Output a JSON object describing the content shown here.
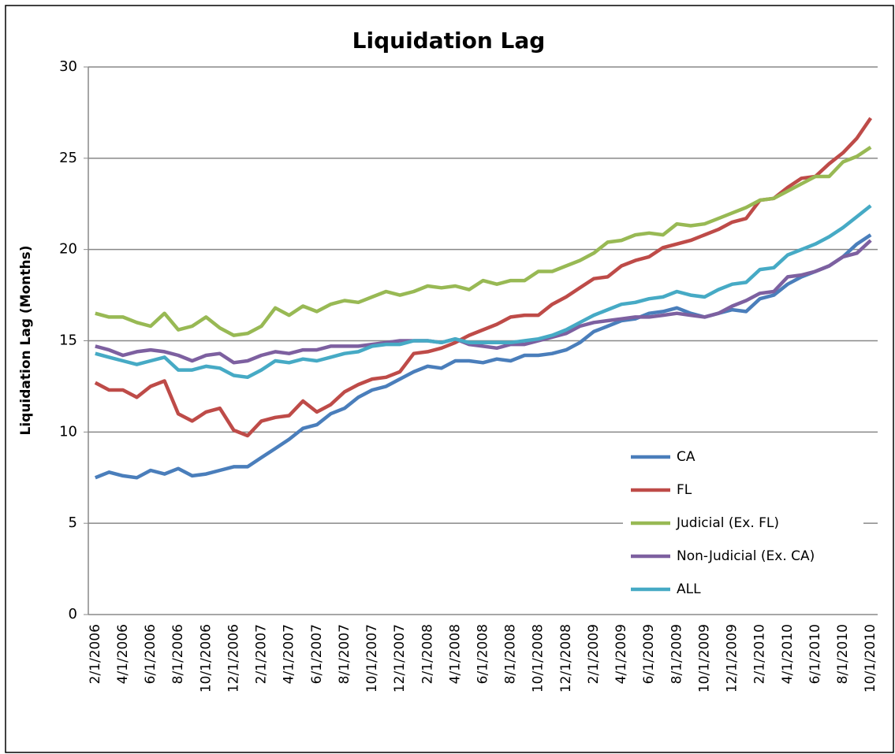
{
  "chart_data": {
    "type": "line",
    "title": "Liquidation Lag",
    "y_label": "Liquidation Lag (Months)",
    "categories": [
      "2/1/2006",
      null,
      "4/1/2006",
      null,
      "6/1/2006",
      null,
      "8/1/2006",
      null,
      "10/1/2006",
      null,
      "12/1/2006",
      null,
      "2/1/2007",
      null,
      "4/1/2007",
      null,
      "6/1/2007",
      null,
      "8/1/2007",
      null,
      "10/1/2007",
      null,
      "12/1/2007",
      null,
      "2/1/2008",
      null,
      "4/1/2008",
      null,
      "6/1/2008",
      null,
      "8/1/2008",
      null,
      "10/1/2008",
      null,
      "12/1/2008",
      null,
      "2/1/2009",
      null,
      "4/1/2009",
      null,
      "6/1/2009",
      null,
      "8/1/2009",
      null,
      "10/1/2009",
      null,
      "12/1/2009",
      null,
      "2/1/2010",
      null,
      "4/1/2010",
      null,
      "6/1/2010",
      null,
      "8/1/2010",
      null,
      "10/1/2010"
    ],
    "series": [
      {
        "name": "CA",
        "color": "#4a7ebb",
        "values": [
          7.5,
          7.8,
          7.6,
          7.5,
          7.9,
          7.7,
          8.0,
          7.6,
          7.7,
          7.9,
          8.1,
          8.1,
          8.6,
          9.1,
          9.6,
          10.2,
          10.4,
          11.0,
          11.3,
          11.9,
          12.3,
          12.5,
          12.9,
          13.3,
          13.6,
          13.5,
          13.9,
          13.9,
          13.8,
          14.0,
          13.9,
          14.2,
          14.2,
          14.3,
          14.5,
          14.9,
          15.5,
          15.8,
          16.1,
          16.2,
          16.5,
          16.6,
          16.8,
          16.5,
          16.3,
          16.5,
          16.7,
          16.6,
          17.3,
          17.5,
          18.1,
          18.5,
          18.8,
          19.1,
          19.6,
          20.3,
          20.8
        ]
      },
      {
        "name": "FL",
        "color": "#be4b48",
        "values": [
          12.7,
          12.3,
          12.3,
          11.9,
          12.5,
          12.8,
          11.0,
          10.6,
          11.1,
          11.3,
          10.1,
          9.8,
          10.6,
          10.8,
          10.9,
          11.7,
          11.1,
          11.5,
          12.2,
          12.6,
          12.9,
          13.0,
          13.3,
          14.3,
          14.4,
          14.6,
          14.9,
          15.3,
          15.6,
          15.9,
          16.3,
          16.4,
          16.4,
          17.0,
          17.4,
          17.9,
          18.4,
          18.5,
          19.1,
          19.4,
          19.6,
          20.1,
          20.3,
          20.5,
          20.8,
          21.1,
          21.5,
          21.7,
          22.7,
          22.8,
          23.4,
          23.9,
          24.0,
          24.7,
          25.3,
          26.1,
          27.2
        ]
      },
      {
        "name": "Judicial (Ex. FL)",
        "color": "#98b954",
        "values": [
          16.5,
          16.3,
          16.3,
          16.0,
          15.8,
          16.5,
          15.6,
          15.8,
          16.3,
          15.7,
          15.3,
          15.4,
          15.8,
          16.8,
          16.4,
          16.9,
          16.6,
          17.0,
          17.2,
          17.1,
          17.4,
          17.7,
          17.5,
          17.7,
          18.0,
          17.9,
          18.0,
          17.8,
          18.3,
          18.1,
          18.3,
          18.3,
          18.8,
          18.8,
          19.1,
          19.4,
          19.8,
          20.4,
          20.5,
          20.8,
          20.9,
          20.8,
          21.4,
          21.3,
          21.4,
          21.7,
          22.0,
          22.3,
          22.7,
          22.8,
          23.2,
          23.6,
          24.0,
          24.0,
          24.8,
          25.1,
          25.6
        ]
      },
      {
        "name": "Non-Judicial (Ex. CA)",
        "color": "#7d60a0",
        "values": [
          14.7,
          14.5,
          14.2,
          14.4,
          14.5,
          14.4,
          14.2,
          13.9,
          14.2,
          14.3,
          13.8,
          13.9,
          14.2,
          14.4,
          14.3,
          14.5,
          14.5,
          14.7,
          14.7,
          14.7,
          14.8,
          14.9,
          15.0,
          15.0,
          15.0,
          14.9,
          15.1,
          14.8,
          14.7,
          14.6,
          14.8,
          14.8,
          15.0,
          15.2,
          15.4,
          15.8,
          16.0,
          16.1,
          16.2,
          16.3,
          16.3,
          16.4,
          16.5,
          16.4,
          16.3,
          16.5,
          16.9,
          17.2,
          17.6,
          17.7,
          18.5,
          18.6,
          18.8,
          19.1,
          19.6,
          19.8,
          20.5
        ]
      },
      {
        "name": "ALL",
        "color": "#46aac5",
        "values": [
          14.3,
          14.1,
          13.9,
          13.7,
          13.9,
          14.1,
          13.4,
          13.4,
          13.6,
          13.5,
          13.1,
          13.0,
          13.4,
          13.9,
          13.8,
          14.0,
          13.9,
          14.1,
          14.3,
          14.4,
          14.7,
          14.8,
          14.8,
          15.0,
          15.0,
          14.9,
          15.1,
          14.9,
          14.9,
          14.9,
          14.9,
          15.0,
          15.1,
          15.3,
          15.6,
          16.0,
          16.4,
          16.7,
          17.0,
          17.1,
          17.3,
          17.4,
          17.7,
          17.5,
          17.4,
          17.8,
          18.1,
          18.2,
          18.9,
          19.0,
          19.7,
          20.0,
          20.3,
          20.7,
          21.2,
          21.8,
          22.4
        ]
      }
    ],
    "ylim": [
      0,
      30
    ],
    "yticks": [
      0,
      5,
      10,
      15,
      20,
      25,
      30
    ],
    "grid": true,
    "legend": "lower right"
  }
}
